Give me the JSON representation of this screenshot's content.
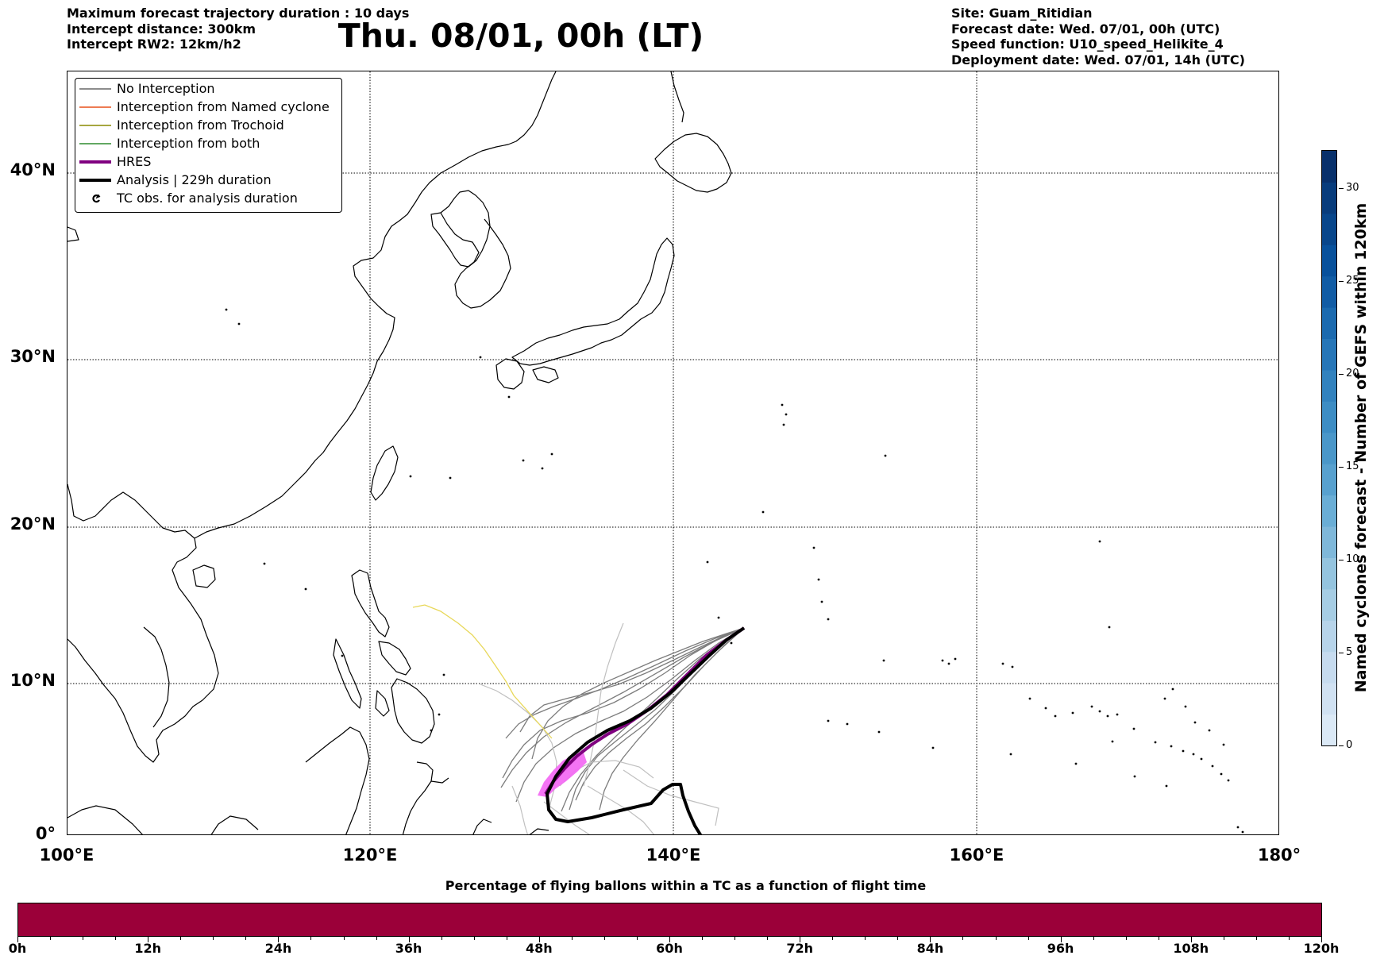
{
  "header": {
    "left_lines": [
      "Maximum forecast trajectory duration : 10 days",
      "Intercept distance: 300km",
      "Intercept RW2: 12km/h2"
    ],
    "title": "Thu. 08/01, 00h (LT)",
    "right_lines": [
      "Site: Guam_Ritidian",
      "Forecast date: Wed. 07/01, 00h (UTC)",
      "Speed function: U10_speed_Helikite_4",
      "Deployment date: Wed. 07/01, 14h (UTC)"
    ]
  },
  "map": {
    "lon_range": [
      100,
      180
    ],
    "lat_range": [
      0,
      46
    ],
    "lon_labels": [
      "100°E",
      "120°E",
      "140°E",
      "160°E",
      "180°"
    ],
    "lat_labels": [
      "0°",
      "10°N",
      "20°N",
      "30°N",
      "40°N"
    ],
    "grid": "dotted"
  },
  "legend": {
    "placement": "top-left",
    "items": [
      {
        "label": "No Interception",
        "color": "#666666"
      },
      {
        "label": "Interception from Named cyclone",
        "color": "#e8501a"
      },
      {
        "label": "Interception from Trochoid",
        "color": "#8a8a00"
      },
      {
        "label": "Interception from both",
        "color": "#2e8b2e"
      },
      {
        "label": "HRES",
        "color": "#800080"
      },
      {
        "label": "Analysis | 229h duration",
        "color": "#000000"
      },
      {
        "label": "TC obs. for analysis duration",
        "icon": "cyclone-icon"
      }
    ]
  },
  "colorbar": {
    "title": "Named cyclones forecast - Number of GEFS within 120km",
    "ticks": [
      "0",
      "5",
      "10",
      "15",
      "20",
      "25",
      "30"
    ],
    "range": [
      0,
      32
    ],
    "colors": [
      "#dbe9f6",
      "#d0e1f2",
      "#c6dbef",
      "#b7d4ea",
      "#a6cde4",
      "#94c4df",
      "#7fb8da",
      "#6aaed6",
      "#58a1cf",
      "#4a97c9",
      "#3d8dc4",
      "#3282be",
      "#2676b8",
      "#1b6aaf",
      "#115ca5",
      "#08519c",
      "#08468b",
      "#083c7c",
      "#08306b"
    ]
  },
  "timebar": {
    "title": "Percentage of flying ballons within a TC as a function of flight time",
    "labels": [
      "0h",
      "12h",
      "24h",
      "36h",
      "48h",
      "60h",
      "72h",
      "84h",
      "96h",
      "108h",
      "120h"
    ],
    "fill_color": "#9b0039"
  }
}
